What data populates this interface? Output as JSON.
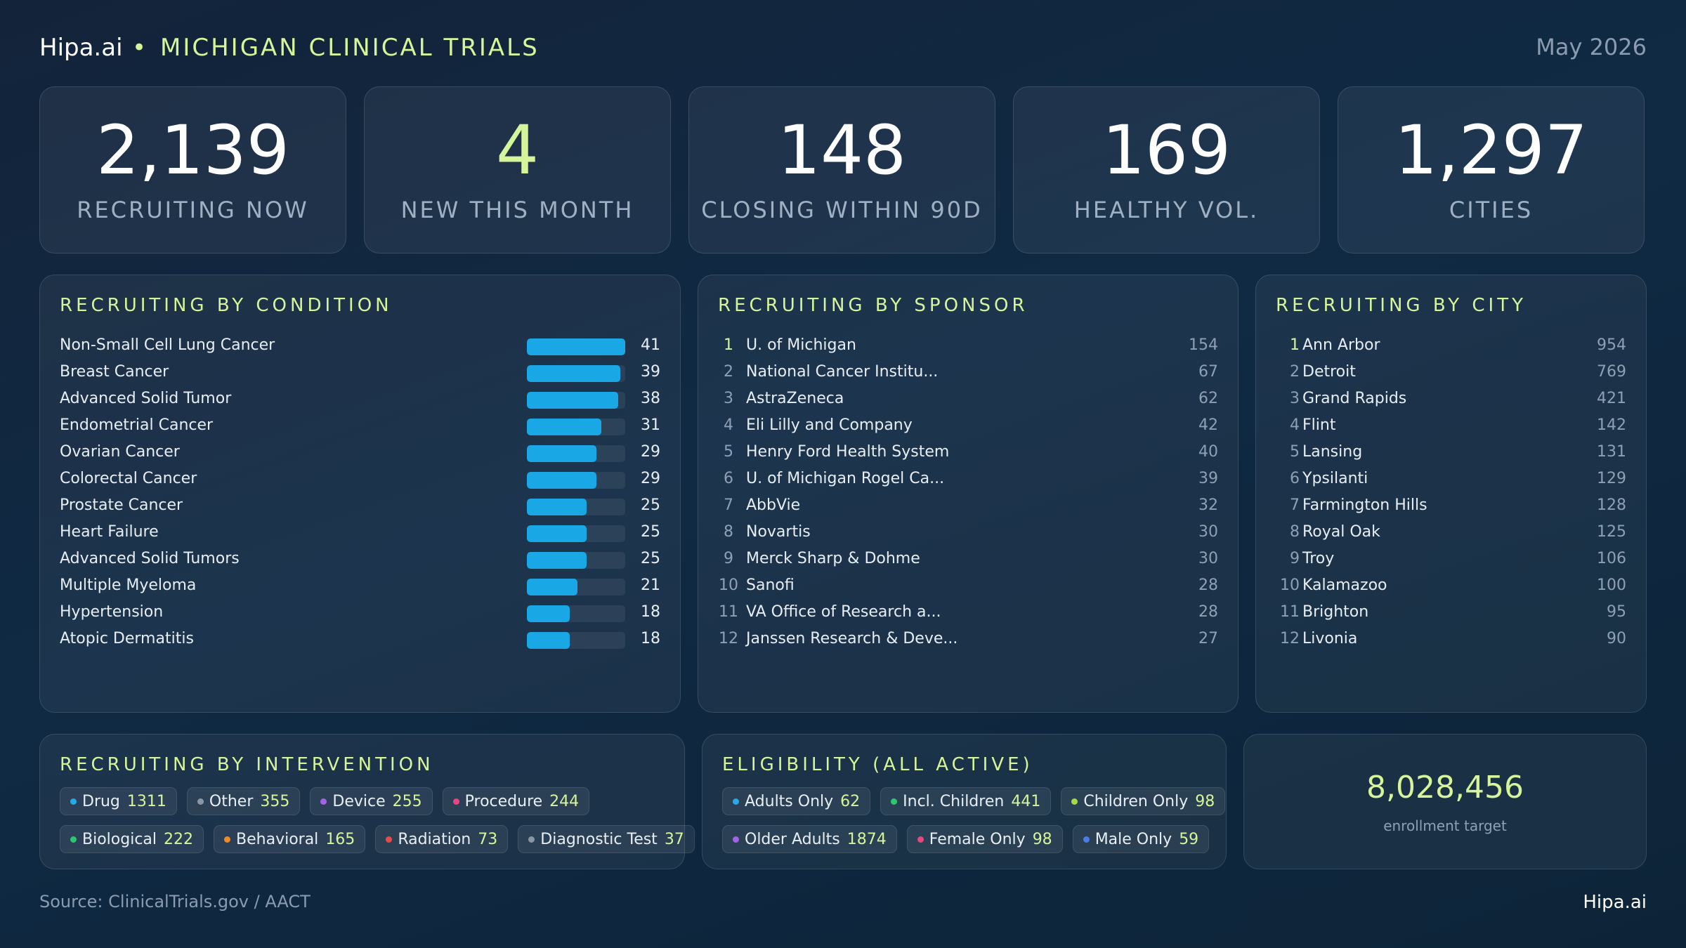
{
  "header": {
    "brand": "Hipa.ai",
    "separator": "•",
    "title": "MICHIGAN CLINICAL TRIALS",
    "date": "May 2026"
  },
  "kpis": [
    {
      "value": "2,139",
      "label": "RECRUITING NOW",
      "accent": false
    },
    {
      "value": "4",
      "label": "NEW THIS MONTH",
      "accent": true
    },
    {
      "value": "148",
      "label": "CLOSING WITHIN 90D",
      "accent": false
    },
    {
      "value": "169",
      "label": "HEALTHY VOL.",
      "accent": false
    },
    {
      "value": "1,297",
      "label": "CITIES",
      "accent": false
    }
  ],
  "condition": {
    "title": "RECRUITING BY CONDITION",
    "bar_color": "#1aa7e6",
    "max": 41,
    "items": [
      {
        "name": "Non-Small Cell Lung Cancer",
        "count": 41
      },
      {
        "name": "Breast Cancer",
        "count": 39
      },
      {
        "name": "Advanced Solid Tumor",
        "count": 38
      },
      {
        "name": "Endometrial Cancer",
        "count": 31
      },
      {
        "name": "Ovarian Cancer",
        "count": 29
      },
      {
        "name": "Colorectal Cancer",
        "count": 29
      },
      {
        "name": "Prostate Cancer",
        "count": 25
      },
      {
        "name": "Heart Failure",
        "count": 25
      },
      {
        "name": "Advanced Solid Tumors",
        "count": 25
      },
      {
        "name": "Multiple Myeloma",
        "count": 21
      },
      {
        "name": "Hypertension",
        "count": 18
      },
      {
        "name": "Atopic Dermatitis",
        "count": 18
      }
    ]
  },
  "sponsor": {
    "title": "RECRUITING BY SPONSOR",
    "items": [
      {
        "rank": "1",
        "name": "U. of Michigan",
        "count": "154"
      },
      {
        "rank": "2",
        "name": "National Cancer Institu...",
        "count": "67"
      },
      {
        "rank": "3",
        "name": "AstraZeneca",
        "count": "62"
      },
      {
        "rank": "4",
        "name": "Eli Lilly and Company",
        "count": "42"
      },
      {
        "rank": "5",
        "name": "Henry Ford Health System",
        "count": "40"
      },
      {
        "rank": "6",
        "name": "U. of Michigan Rogel Ca...",
        "count": "39"
      },
      {
        "rank": "7",
        "name": "AbbVie",
        "count": "32"
      },
      {
        "rank": "8",
        "name": "Novartis",
        "count": "30"
      },
      {
        "rank": "9",
        "name": "Merck Sharp & Dohme",
        "count": "30"
      },
      {
        "rank": "10",
        "name": "Sanofi",
        "count": "28"
      },
      {
        "rank": "11",
        "name": "VA Office of Research a...",
        "count": "28"
      },
      {
        "rank": "12",
        "name": "Janssen Research & Deve...",
        "count": "27"
      }
    ]
  },
  "city": {
    "title": "RECRUITING BY CITY",
    "items": [
      {
        "rank": "1",
        "name": "Ann Arbor",
        "count": "954"
      },
      {
        "rank": "2",
        "name": "Detroit",
        "count": "769"
      },
      {
        "rank": "3",
        "name": "Grand Rapids",
        "count": "421"
      },
      {
        "rank": "4",
        "name": "Flint",
        "count": "142"
      },
      {
        "rank": "5",
        "name": "Lansing",
        "count": "131"
      },
      {
        "rank": "6",
        "name": "Ypsilanti",
        "count": "129"
      },
      {
        "rank": "7",
        "name": "Farmington Hills",
        "count": "128"
      },
      {
        "rank": "8",
        "name": "Royal Oak",
        "count": "125"
      },
      {
        "rank": "9",
        "name": "Troy",
        "count": "106"
      },
      {
        "rank": "10",
        "name": "Kalamazoo",
        "count": "100"
      },
      {
        "rank": "11",
        "name": "Brighton",
        "count": "95"
      },
      {
        "rank": "12",
        "name": "Livonia",
        "count": "90"
      }
    ]
  },
  "intervention": {
    "title": "RECRUITING BY INTERVENTION",
    "lines": [
      [
        {
          "label": "Drug",
          "value": "1311",
          "color": "#29a8e8"
        },
        {
          "label": "Other",
          "value": "355",
          "color": "#8a96a6"
        },
        {
          "label": "Device",
          "value": "255",
          "color": "#a463e6"
        },
        {
          "label": "Procedure",
          "value": "244",
          "color": "#e8487f"
        }
      ],
      [
        {
          "label": "Biological",
          "value": "222",
          "color": "#2ec770"
        },
        {
          "label": "Behavioral",
          "value": "165",
          "color": "#f08a24"
        },
        {
          "label": "Radiation",
          "value": "73",
          "color": "#e84a4a"
        },
        {
          "label": "Diagnostic Test",
          "value": "37",
          "color": "#8a96a6"
        }
      ]
    ]
  },
  "eligibility": {
    "title": "ELIGIBILITY (ALL ACTIVE)",
    "lines": [
      [
        {
          "label": "Adults Only",
          "value": "62",
          "color": "#29a8e8"
        },
        {
          "label": "Incl. Children",
          "value": "441",
          "color": "#2ec770"
        },
        {
          "label": "Children Only",
          "value": "98",
          "color": "#a8d84a"
        }
      ],
      [
        {
          "label": "Older Adults",
          "value": "1874",
          "color": "#a463e6"
        },
        {
          "label": "Female Only",
          "value": "98",
          "color": "#e8487f"
        },
        {
          "label": "Male Only",
          "value": "59",
          "color": "#4a7ce8"
        }
      ]
    ]
  },
  "enrollment": {
    "value": "8,028,456",
    "label": "enrollment target"
  },
  "footer": {
    "source": "Source: ClinicalTrials.gov / AACT",
    "brand": "Hipa.ai"
  }
}
